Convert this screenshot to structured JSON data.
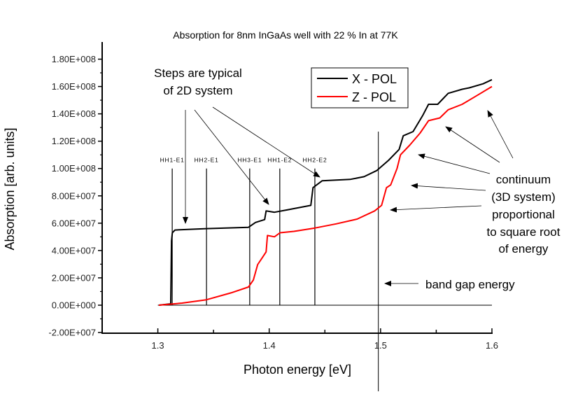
{
  "chart_data": {
    "type": "line",
    "title": "Absorption for 8nm InGaAs well with 22 % In at 77K",
    "xlabel": "Photon energy [eV]",
    "ylabel": "Absorption [arb. units]",
    "xlim": [
      1.25,
      1.6
    ],
    "ylim": [
      -20500000,
      190000000
    ],
    "grid": false,
    "legend_placement": "top-center",
    "x_ticks": [
      1.3,
      1.4,
      1.5,
      1.6
    ],
    "x_tick_labels": [
      "1.3",
      "1.4",
      "1.5",
      "1.6"
    ],
    "y_ticks": [
      -20000000,
      0,
      20000000,
      40000000,
      60000000,
      80000000,
      100000000,
      120000000,
      140000000,
      160000000,
      180000000
    ],
    "y_tick_labels": [
      "-2.00E+007",
      "0.00E+000",
      "2.00E+007",
      "4.00E+007",
      "6.00E+007",
      "8.00E+007",
      "1.00E+008",
      "1.20E+008",
      "1.40E+008",
      "1.60E+008",
      "1.80E+008"
    ],
    "series": [
      {
        "name": "X - POL",
        "color": "#000000",
        "x": [
          1.3009,
          1.3116,
          1.3123,
          1.313,
          1.3154,
          1.3437,
          1.3814,
          1.3877,
          1.3959,
          1.3972,
          1.4047,
          1.416,
          1.4374,
          1.4393,
          1.4475,
          1.4726,
          1.4852,
          1.4965,
          1.5072,
          1.5167,
          1.5204,
          1.5292,
          1.538,
          1.5431,
          1.5513,
          1.5607,
          1.5733,
          1.5796,
          1.5921,
          1.6
        ],
        "y": [
          0,
          1000000,
          47000000,
          53000000,
          55000000,
          56000000,
          57000000,
          60500000,
          62600000,
          69000000,
          68000000,
          69700000,
          73000000,
          86000000,
          91000000,
          92000000,
          94000000,
          98500000,
          106000000,
          114000000,
          124000000,
          127000000,
          139000000,
          147000000,
          147000000,
          155000000,
          158000000,
          159000000,
          162000000,
          165000000
        ]
      },
      {
        "name": "Z - POL",
        "color": "#ff0000",
        "x": [
          1.3009,
          1.3217,
          1.3437,
          1.3657,
          1.3814,
          1.3858,
          1.3896,
          1.394,
          1.3972,
          1.3984,
          1.4047,
          1.4097,
          1.4223,
          1.4412,
          1.4601,
          1.4789,
          1.4947,
          1.5009,
          1.5053,
          1.5091,
          1.5148,
          1.5179,
          1.5261,
          1.5355,
          1.5431,
          1.5532,
          1.5607,
          1.5733,
          1.5858,
          1.6
        ],
        "y": [
          0,
          1500000,
          4000000,
          9000000,
          13300000,
          18500000,
          29700000,
          35000000,
          39000000,
          51000000,
          50000000,
          53000000,
          54000000,
          56500000,
          59500000,
          63000000,
          69000000,
          73000000,
          86000000,
          88000000,
          100000000,
          110000000,
          117000000,
          126000000,
          135000000,
          137000000,
          143000000,
          147000000,
          153000000,
          160000000
        ]
      }
    ],
    "baseline": {
      "x": [
        1.3,
        1.6
      ],
      "y": 0
    },
    "transition_lines": [
      {
        "label": "HH1-E1",
        "x": 1.3129,
        "y": [
          0,
          100000000
        ]
      },
      {
        "label": "HH2-E1",
        "x": 1.3437,
        "y": [
          0,
          100000000
        ]
      },
      {
        "label": "HH3-E1",
        "x": 1.3825,
        "y": [
          0,
          100000000
        ]
      },
      {
        "label": "HH1-E2",
        "x": 1.4095,
        "y": [
          0,
          100000000
        ]
      },
      {
        "label": "HH2-E2",
        "x": 1.441,
        "y": [
          0,
          100000000
        ]
      }
    ],
    "band_gap_line": {
      "x": 1.498,
      "y": [
        -63000000,
        127000000
      ]
    },
    "annotations": {
      "steps": [
        "Steps are typical",
        "of 2D system"
      ],
      "continuum": [
        "continuum",
        "(3D system)",
        "proportional",
        "to square root",
        "of energy"
      ],
      "band_gap": "band gap energy"
    }
  }
}
